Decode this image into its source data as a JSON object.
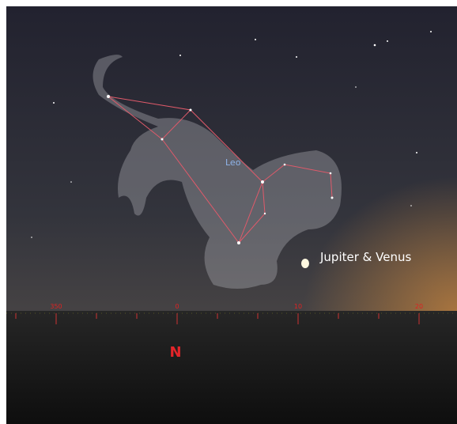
{
  "labels": {
    "constellation": "Leo",
    "planet": "Jupiter & Venus",
    "cardinal": "N"
  },
  "azimuth_labels": [
    "350",
    "0",
    "10",
    "20"
  ]
}
